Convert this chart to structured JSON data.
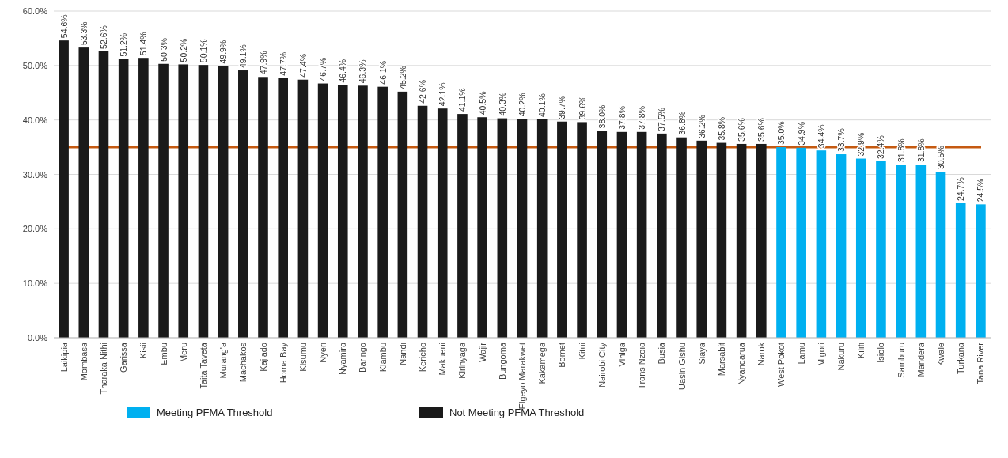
{
  "chart_data": {
    "type": "bar",
    "categories": [
      "Laikipia",
      "Mombasa",
      "Tharaka Nithi",
      "Garissa",
      "Kisii",
      "Embu",
      "Meru",
      "Taita Taveta",
      "Murang'a",
      "Machakos",
      "Kajiado",
      "Homa Bay",
      "Kisumu",
      "Nyeri",
      "Nyamira",
      "Baringo",
      "Kiambu",
      "Nandi",
      "Kericho",
      "Makueni",
      "Kirinyaga",
      "Wajir",
      "Bungoma",
      "Elgeyo Marakwet",
      "Kakamega",
      "Bomet",
      "Kitui",
      "Nairobi City",
      "Vihiga",
      "Trans Nzoia",
      "Busia",
      "Uasin Gishu",
      "Siaya",
      "Marsabit",
      "Nyandarua",
      "Narok",
      "West Pokot",
      "Lamu",
      "Migori",
      "Nakuru",
      "Kilifi",
      "Isiolo",
      "Samburu",
      "Mandera",
      "Kwale",
      "Turkana",
      "Tana River"
    ],
    "series": [
      {
        "name": "Meeting PFMA Threshold",
        "color": "#00b0f0",
        "values": [
          null,
          null,
          null,
          null,
          null,
          null,
          null,
          null,
          null,
          null,
          null,
          null,
          null,
          null,
          null,
          null,
          null,
          null,
          null,
          null,
          null,
          null,
          null,
          null,
          null,
          null,
          null,
          null,
          null,
          null,
          null,
          null,
          null,
          null,
          null,
          null,
          35.0,
          34.9,
          34.4,
          33.7,
          32.9,
          32.4,
          31.8,
          31.8,
          30.5,
          24.7,
          24.5
        ],
        "value_labels": [
          null,
          null,
          null,
          null,
          null,
          null,
          null,
          null,
          null,
          null,
          null,
          null,
          null,
          null,
          null,
          null,
          null,
          null,
          null,
          null,
          null,
          null,
          null,
          null,
          null,
          null,
          null,
          null,
          null,
          null,
          null,
          null,
          null,
          null,
          null,
          null,
          "35.0%",
          "34.9%",
          "34.4%",
          "33.7%",
          "32.9%",
          "32.4%",
          "31.8%",
          "31.8%",
          "30.5%",
          "24.7%",
          "24.5%"
        ]
      },
      {
        "name": "Not Meeting PFMA Threshold",
        "color": "#1a1a1a",
        "values": [
          54.6,
          53.3,
          52.6,
          51.2,
          51.4,
          50.3,
          50.2,
          50.1,
          49.9,
          49.1,
          47.9,
          47.7,
          47.4,
          46.7,
          46.4,
          46.3,
          46.1,
          45.2,
          42.6,
          42.1,
          41.1,
          40.5,
          40.3,
          40.2,
          40.1,
          39.7,
          39.6,
          38.0,
          37.8,
          37.8,
          37.5,
          36.8,
          36.2,
          35.8,
          35.6,
          35.6,
          null,
          null,
          null,
          null,
          null,
          null,
          null,
          null,
          null,
          null,
          null
        ],
        "value_labels": [
          "54.6%",
          "53.3%",
          "52.6%",
          "51.2%",
          "51.4%",
          "50.3%",
          "50.2%",
          "50.1%",
          "49.9%",
          "49.1%",
          "47.9%",
          "47.7%",
          "47.4%",
          "46.7%",
          "46.4%",
          "46.3%",
          "46.1%",
          "45.2%",
          "42.6%",
          "42.1%",
          "41.1%",
          "40.5%",
          "40.3%",
          "40.2%",
          "40.1%",
          "39.7%",
          "39.6%",
          "38.0%",
          "37.8%",
          "37.8%",
          "37.5%",
          "36.8%",
          "36.2%",
          "35.8%",
          "35.6%",
          "35.6%",
          null,
          null,
          null,
          null,
          null,
          null,
          null,
          null,
          null,
          null,
          null
        ]
      }
    ],
    "ylim": [
      0,
      60
    ],
    "yticks": [
      {
        "value": 0,
        "label": "0.0%"
      },
      {
        "value": 10,
        "label": "10.0%"
      },
      {
        "value": 20,
        "label": "20.0%"
      },
      {
        "value": 30,
        "label": "30.0%"
      },
      {
        "value": 40,
        "label": "40.0%"
      },
      {
        "value": 50,
        "label": "50.0%"
      },
      {
        "value": 60,
        "label": "60.0%"
      }
    ],
    "grid": "y",
    "legend": "bottom",
    "ref_lines": [
      {
        "axis": "y",
        "value": 35,
        "color": "#c55a11"
      }
    ]
  }
}
